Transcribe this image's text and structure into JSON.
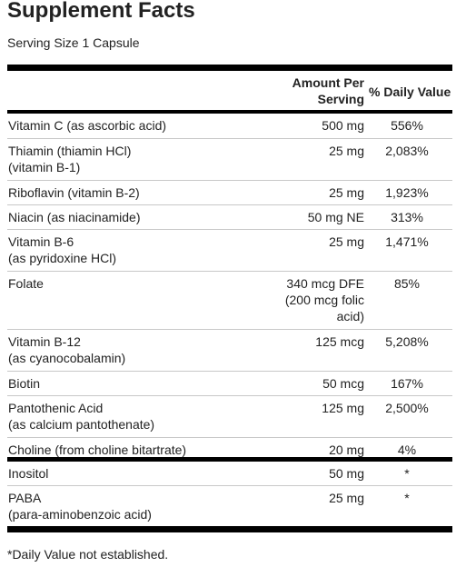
{
  "title": "Supplement Facts",
  "serving": "Serving Size 1 Capsule",
  "headers": {
    "amount": "Amount Per\nServing",
    "daily_value": "% Daily Value"
  },
  "group1": [
    {
      "name": "Vitamin C (as ascorbic acid)",
      "amount": "500 mg",
      "dv": "556%"
    },
    {
      "name": "Thiamin (thiamin HCl)\n   (vitamin B-1)",
      "amount": "25 mg",
      "dv": "2,083%"
    },
    {
      "name": "Riboflavin (vitamin B-2)",
      "amount": "25 mg",
      "dv": "1,923%"
    },
    {
      "name": "Niacin (as niacinamide)",
      "amount": "50 mg NE",
      "dv": "313%"
    },
    {
      "name": "Vitamin B-6\n   (as pyridoxine HCl)",
      "amount": "25 mg",
      "dv": "1,471%"
    },
    {
      "name": "Folate",
      "amount": "340 mcg DFE\n(200 mcg folic\nacid)",
      "dv": "85%"
    },
    {
      "name": "Vitamin B-12\n   (as cyanocobalamin)",
      "amount": "125 mcg",
      "dv": "5,208%"
    },
    {
      "name": "Biotin",
      "amount": "50 mcg",
      "dv": "167%"
    },
    {
      "name": "Pantothenic Acid\n   (as calcium pantothenate)",
      "amount": "125 mg",
      "dv": "2,500%"
    },
    {
      "name": "Choline (from choline bitartrate)",
      "amount": "20 mg",
      "dv": "4%"
    }
  ],
  "group2": [
    {
      "name": "Inositol",
      "amount": "50 mg",
      "dv": "*"
    },
    {
      "name": "PABA\n   (para-aminobenzoic acid)",
      "amount": "25 mg",
      "dv": "*"
    }
  ],
  "footnote": "*Daily Value not established."
}
